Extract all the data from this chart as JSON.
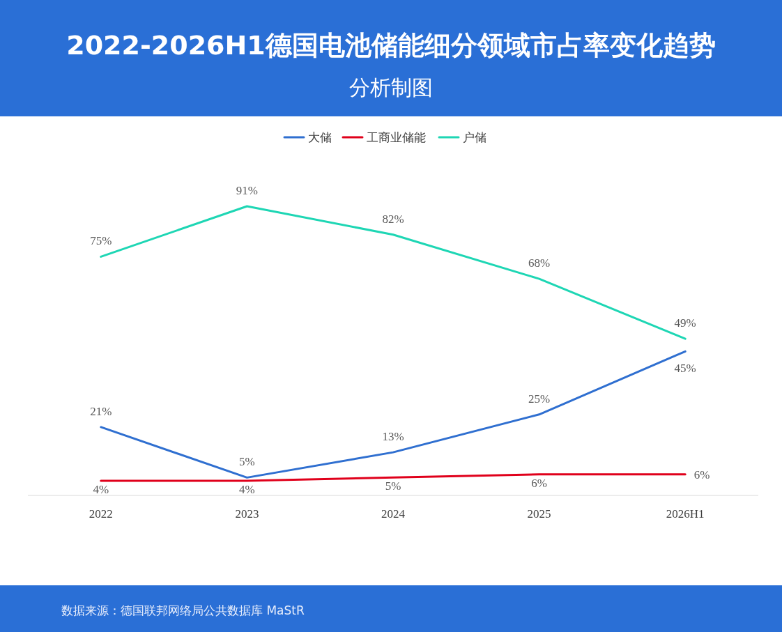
{
  "chart_data": {
    "type": "line",
    "title": "2022-2026H1德国电池储能细分领域市占率变化趋势",
    "subtitle": "分析制图",
    "categories": [
      "2022",
      "2023",
      "2024",
      "2025",
      "2026H1"
    ],
    "series": [
      {
        "name": "大储",
        "color": "#2f6fd0",
        "values": [
          21,
          5,
          13,
          25,
          45
        ],
        "value_labels": [
          "21%",
          "5%",
          "13%",
          "25%",
          "45%"
        ]
      },
      {
        "name": "工商业储能",
        "color": "#e0001b",
        "values": [
          4,
          4,
          5,
          6,
          6
        ],
        "value_labels": [
          "4%",
          "4%",
          "5%",
          "6%",
          "6%"
        ]
      },
      {
        "name": "户储",
        "color": "#1ed6b4",
        "values": [
          75,
          91,
          82,
          68,
          49
        ],
        "value_labels": [
          "75%",
          "91%",
          "82%",
          "68%",
          "49%"
        ]
      }
    ],
    "legend": "top",
    "grid": false,
    "marker": "none",
    "line_style": "solid",
    "annotations": [
      "数据来源：德国联邦网络局公共数据库 MaStR"
    ]
  }
}
